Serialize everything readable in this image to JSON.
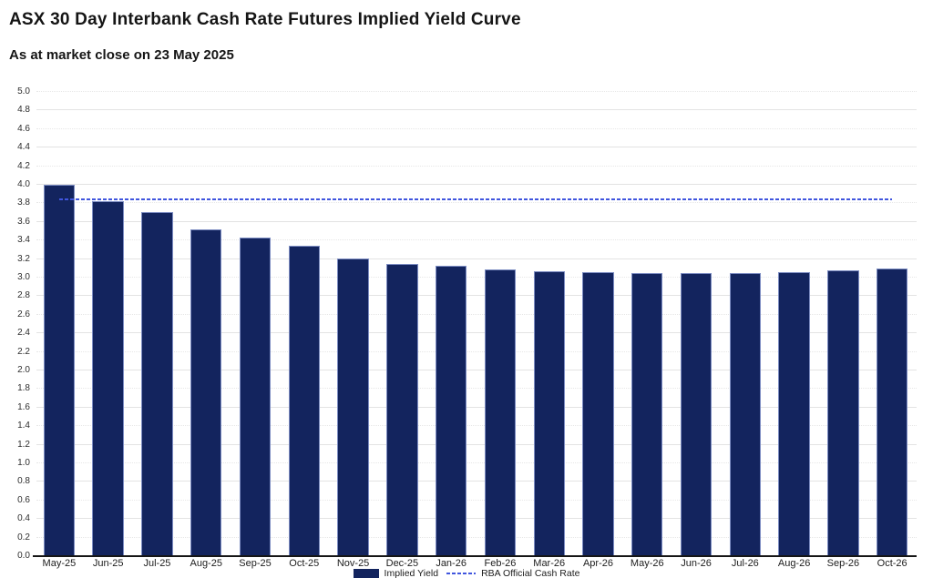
{
  "chart_data": {
    "type": "bar",
    "title": "ASX 30 Day Interbank Cash Rate Futures Implied Yield Curve",
    "subtitle": "As at market close on 23 May 2025",
    "categories": [
      "May-25",
      "Jun-25",
      "Jul-25",
      "Aug-25",
      "Sep-25",
      "Oct-25",
      "Nov-25",
      "Dec-25",
      "Jan-26",
      "Feb-26",
      "Mar-26",
      "Apr-26",
      "May-26",
      "Jun-26",
      "Jul-26",
      "Aug-26",
      "Sep-26",
      "Oct-26"
    ],
    "series": [
      {
        "name": "Implied Yield",
        "values": [
          4.0,
          3.82,
          3.71,
          3.52,
          3.43,
          3.34,
          3.21,
          3.15,
          3.13,
          3.09,
          3.07,
          3.06,
          3.05,
          3.05,
          3.05,
          3.06,
          3.08,
          3.1
        ]
      }
    ],
    "reference_line": {
      "name": "RBA Official Cash Rate",
      "value": 3.85,
      "style": "dashed"
    },
    "xlabel": "",
    "ylabel": "",
    "ylim": [
      0.0,
      5.0
    ],
    "ytick_step": 0.2,
    "ytick_labels": [
      "0.0",
      "0.2",
      "0.4",
      "0.6",
      "0.8",
      "1.0",
      "1.2",
      "1.4",
      "1.6",
      "1.8",
      "2.0",
      "2.2",
      "2.4",
      "2.6",
      "2.8",
      "3.0",
      "3.2",
      "3.4",
      "3.6",
      "3.8",
      "4.0",
      "4.2",
      "4.4",
      "4.6",
      "4.8",
      "5.0"
    ],
    "grid": true,
    "legend_position": "bottom-center",
    "colors": {
      "bar": "#13245E",
      "bar_border": "#7c8cc2",
      "reference_line": "#4156DE",
      "grid": "#e3e3e3",
      "axis": "#161616",
      "text": "#1c1c1c",
      "background": "#ffffff"
    }
  },
  "legend": {
    "items": [
      {
        "label": "Implied Yield",
        "swatch": "bar"
      },
      {
        "label": "RBA Official Cash Rate",
        "swatch": "dashed-line"
      }
    ]
  }
}
